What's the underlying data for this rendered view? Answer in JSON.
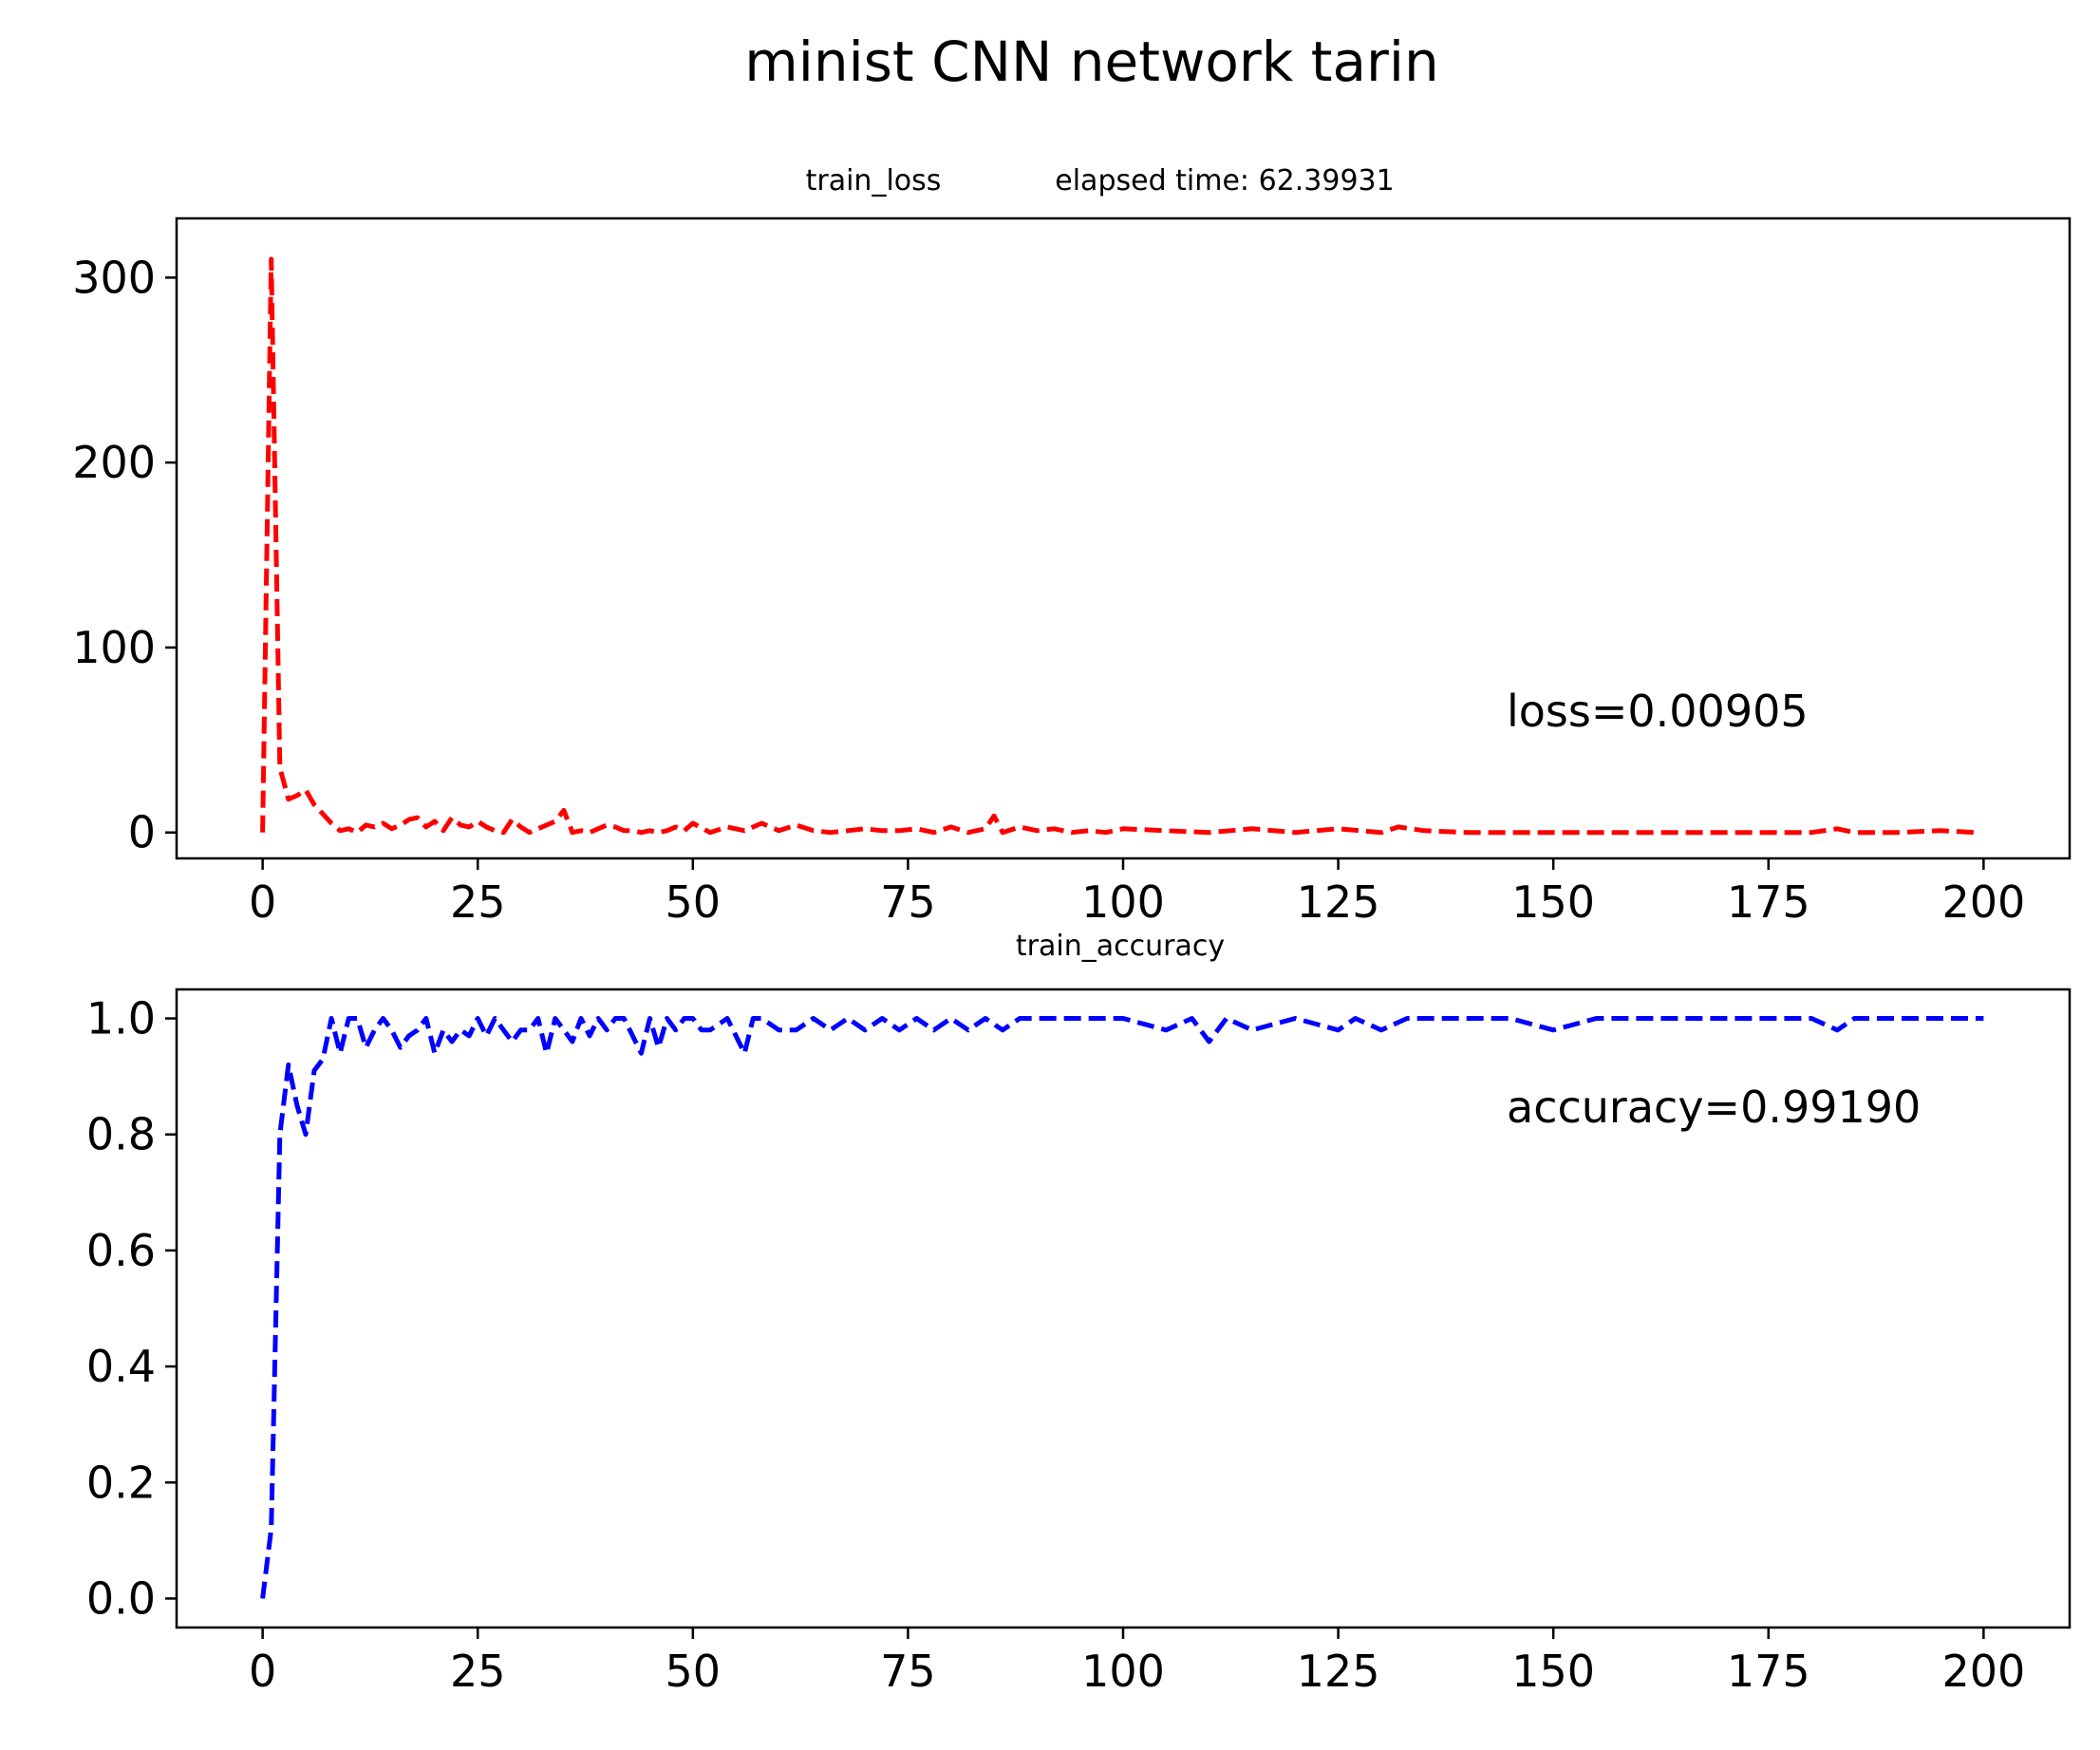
{
  "figure": {
    "suptitle": "minist CNN network tarin"
  },
  "chart_data": [
    {
      "type": "line",
      "title": "train_loss",
      "subtitle": "elapsed time: 62.39931",
      "xlabel": "",
      "ylabel": "",
      "xlim": [
        -10,
        210
      ],
      "ylim": [
        -14,
        332
      ],
      "xticks": [
        0,
        25,
        50,
        75,
        100,
        125,
        150,
        175,
        200
      ],
      "yticks": [
        0,
        100,
        200,
        300
      ],
      "ytick_labels": [
        "0",
        "100",
        "200",
        "300"
      ],
      "grid": false,
      "legend": "none",
      "annotation": {
        "text": "loss=0.00905",
        "x": 145,
        "y": 60
      },
      "series": [
        {
          "color": "#ff0000",
          "linestyle": "dashed",
          "x": [
            0,
            1,
            2,
            3,
            4,
            5,
            6,
            7,
            8,
            9,
            10,
            11,
            12,
            13,
            14,
            15,
            16,
            17,
            18,
            19,
            20,
            21,
            22,
            23,
            24,
            25,
            26,
            27,
            28,
            29,
            30,
            31,
            32,
            33,
            34,
            35,
            36,
            37,
            38,
            39,
            40,
            41,
            42,
            43,
            44,
            45,
            46,
            47,
            48,
            49,
            50,
            52,
            54,
            56,
            58,
            60,
            62,
            64,
            66,
            68,
            70,
            72,
            74,
            76,
            78,
            80,
            82,
            84,
            85,
            86,
            88,
            90,
            92,
            94,
            96,
            98,
            100,
            105,
            110,
            115,
            120,
            125,
            130,
            132,
            135,
            140,
            145,
            150,
            155,
            160,
            165,
            170,
            175,
            180,
            183,
            185,
            190,
            195,
            199
          ],
          "values": [
            0,
            310,
            35,
            18,
            20,
            23,
            15,
            10,
            5,
            1,
            2,
            0,
            4,
            3,
            5,
            2,
            4,
            7,
            8,
            3,
            6,
            1,
            8,
            4,
            3,
            6,
            3,
            1,
            0,
            7,
            3,
            0,
            2,
            4,
            6,
            12,
            0,
            1,
            0,
            2,
            4,
            3,
            1,
            1,
            0,
            1,
            0,
            1,
            3,
            1,
            5,
            0,
            3,
            1,
            5,
            1,
            4,
            1,
            0,
            1,
            2,
            1,
            1,
            2,
            0,
            3,
            0,
            2,
            9,
            0,
            3,
            1,
            2,
            0,
            1,
            0,
            2,
            1,
            0,
            2,
            0,
            2,
            0,
            3,
            1,
            0,
            0,
            0,
            0,
            0,
            0,
            0,
            0,
            0,
            2,
            0,
            0,
            1,
            0
          ]
        }
      ]
    },
    {
      "type": "line",
      "title": "train_accuracy",
      "xlabel": "",
      "ylabel": "",
      "xlim": [
        -10,
        210
      ],
      "ylim": [
        -0.05,
        1.05
      ],
      "xticks": [
        0,
        25,
        50,
        75,
        100,
        125,
        150,
        175,
        200
      ],
      "yticks": [
        0.0,
        0.2,
        0.4,
        0.6,
        0.8,
        1.0
      ],
      "ytick_labels": [
        "0.0",
        "0.2",
        "0.4",
        "0.6",
        "0.8",
        "1.0"
      ],
      "grid": false,
      "legend": "none",
      "annotation": {
        "text": "accuracy=0.99190",
        "x": 145,
        "y": 0.83
      },
      "series": [
        {
          "color": "#0000ff",
          "linestyle": "dashed",
          "x": [
            0,
            1,
            2,
            3,
            4,
            5,
            6,
            7,
            8,
            9,
            10,
            11,
            12,
            13,
            14,
            15,
            16,
            17,
            18,
            19,
            20,
            21,
            22,
            23,
            24,
            25,
            26,
            27,
            28,
            29,
            30,
            31,
            32,
            33,
            34,
            35,
            36,
            37,
            38,
            39,
            40,
            41,
            42,
            43,
            44,
            45,
            46,
            47,
            48,
            49,
            50,
            51,
            52,
            54,
            56,
            57,
            58,
            60,
            62,
            64,
            66,
            68,
            70,
            72,
            74,
            76,
            78,
            80,
            82,
            84,
            86,
            88,
            90,
            95,
            100,
            105,
            108,
            110,
            112,
            115,
            120,
            125,
            127,
            130,
            133,
            135,
            140,
            145,
            150,
            155,
            160,
            165,
            170,
            175,
            180,
            183,
            185,
            190,
            195,
            200
          ],
          "values": [
            0,
            0.12,
            0.8,
            0.92,
            0.85,
            0.8,
            0.91,
            0.93,
            1.0,
            0.94,
            1.0,
            1.0,
            0.95,
            0.98,
            1.0,
            0.98,
            0.95,
            0.97,
            0.98,
            1.0,
            0.94,
            0.98,
            0.96,
            0.98,
            0.97,
            1.0,
            0.97,
            1.0,
            0.98,
            0.96,
            0.98,
            0.98,
            1.0,
            0.94,
            1.0,
            0.98,
            0.96,
            1.0,
            0.97,
            1.0,
            0.98,
            1.0,
            1.0,
            0.97,
            0.94,
            1.0,
            0.95,
            1.0,
            0.98,
            1.0,
            1.0,
            0.98,
            0.98,
            1.0,
            0.94,
            1.0,
            1.0,
            0.98,
            0.98,
            1.0,
            0.98,
            1.0,
            0.98,
            1.0,
            0.98,
            1.0,
            0.98,
            1.0,
            0.98,
            1.0,
            0.98,
            1.0,
            1.0,
            1.0,
            1.0,
            0.98,
            1.0,
            0.96,
            1.0,
            0.98,
            1.0,
            0.98,
            1.0,
            0.98,
            1.0,
            1.0,
            1.0,
            1.0,
            0.98,
            1.0,
            1.0,
            1.0,
            1.0,
            1.0,
            1.0,
            0.98,
            1.0,
            1.0,
            1.0,
            1.0
          ]
        }
      ]
    }
  ]
}
